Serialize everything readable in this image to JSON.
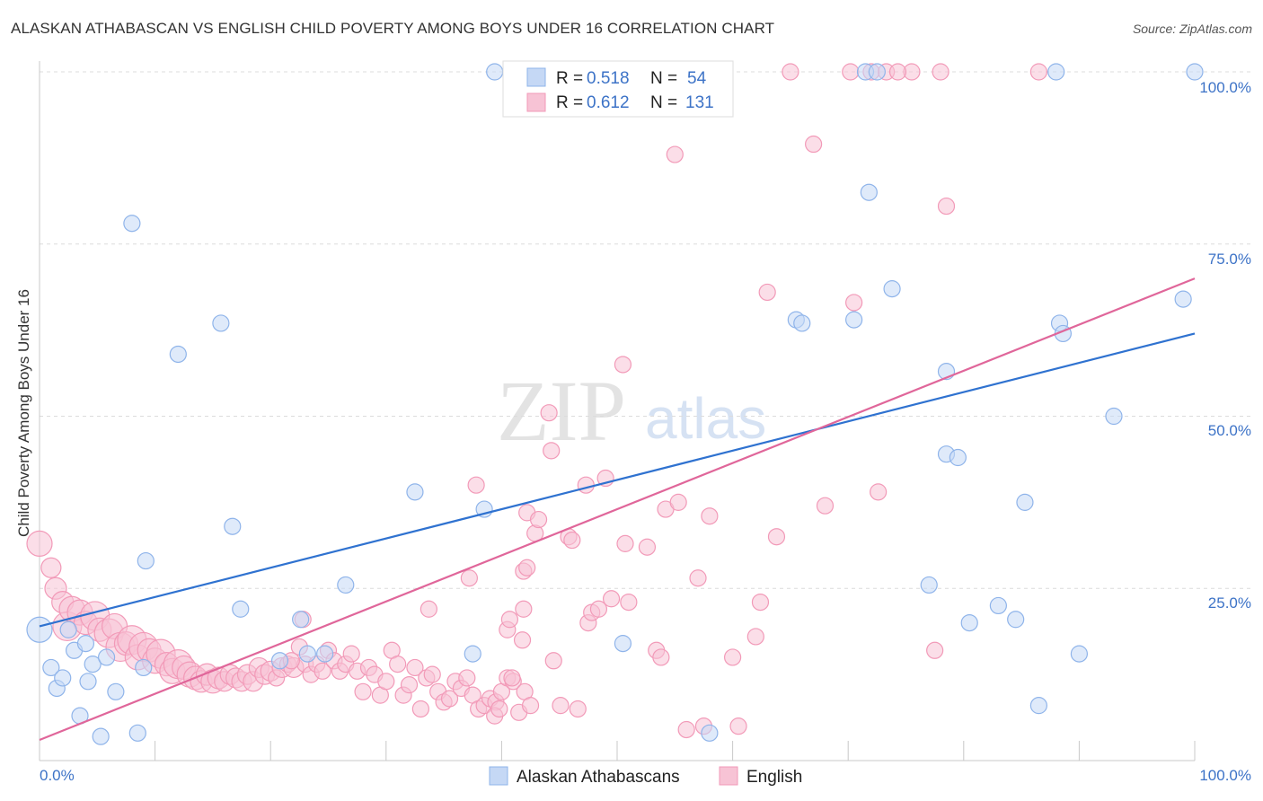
{
  "title": "ALASKAN ATHABASCAN VS ENGLISH CHILD POVERTY AMONG BOYS UNDER 16 CORRELATION CHART",
  "source": "Source: ZipAtlas.com",
  "watermark": {
    "zip": "ZIP",
    "atlas": "atlas"
  },
  "chart_data": {
    "type": "scatter",
    "title": "ALASKAN ATHABASCAN VS ENGLISH CHILD POVERTY AMONG BOYS UNDER 16 CORRELATION CHART",
    "xlabel": "",
    "ylabel": "Child Poverty Among Boys Under 16",
    "xlim": [
      0,
      100
    ],
    "ylim": [
      0,
      100
    ],
    "x_tick_labels": [
      "0.0%",
      "100.0%"
    ],
    "y_ticks": [
      25,
      50,
      75,
      100
    ],
    "y_tick_labels": [
      "25.0%",
      "50.0%",
      "75.0%",
      "100.0%"
    ],
    "grid": "dashed horizontal",
    "legend": {
      "placement": "top-center",
      "entries": [
        {
          "r_label": "R =",
          "r": "0.518",
          "n_label": "N =",
          "n": "54"
        },
        {
          "r_label": "R =",
          "r": "0.612",
          "n_label": "N =",
          "n": "131"
        }
      ]
    },
    "series": [
      {
        "name": "Alaskan Athabascans",
        "color": "#8fb4ea",
        "fill": "#c5d8f5",
        "line_color": "#2f72d0",
        "r": 0.518,
        "n": 54,
        "trend": {
          "x": [
            0,
            100
          ],
          "y": [
            19.5,
            62
          ]
        },
        "points": [
          [
            0,
            19,
            14
          ],
          [
            1,
            13.5,
            9
          ],
          [
            1.5,
            10.5,
            9
          ],
          [
            2,
            12,
            9
          ],
          [
            2.5,
            19,
            9
          ],
          [
            3,
            16,
            9
          ],
          [
            3.5,
            6.5,
            9
          ],
          [
            4,
            17,
            9
          ],
          [
            4.2,
            11.5,
            9
          ],
          [
            4.6,
            14,
            9
          ],
          [
            5.3,
            3.5,
            9
          ],
          [
            5.8,
            15,
            9
          ],
          [
            6.6,
            10,
            9
          ],
          [
            8,
            78,
            9
          ],
          [
            8.5,
            4,
            9
          ],
          [
            9,
            13.5,
            9
          ],
          [
            9.2,
            29,
            9
          ],
          [
            12,
            59,
            9
          ],
          [
            15.7,
            63.5,
            9
          ],
          [
            16.7,
            34,
            9
          ],
          [
            17.4,
            22,
            9
          ],
          [
            20.8,
            14.5,
            9
          ],
          [
            22.6,
            20.5,
            9
          ],
          [
            23.2,
            15.5,
            9
          ],
          [
            24.7,
            15.5,
            9
          ],
          [
            26.5,
            25.5,
            9
          ],
          [
            32.5,
            39,
            9
          ],
          [
            37.5,
            15.5,
            9
          ],
          [
            38.5,
            36.5,
            9
          ],
          [
            39.4,
            100,
            9
          ],
          [
            50.5,
            17,
            9
          ],
          [
            58,
            4,
            9
          ],
          [
            65.5,
            64,
            9
          ],
          [
            66,
            63.5,
            9
          ],
          [
            70.5,
            64,
            9
          ],
          [
            71.5,
            100,
            9
          ],
          [
            71.8,
            82.5,
            9
          ],
          [
            72.5,
            100,
            9
          ],
          [
            73.8,
            68.5,
            9
          ],
          [
            77,
            25.5,
            9
          ],
          [
            78.5,
            56.5,
            9
          ],
          [
            78.5,
            44.5,
            9
          ],
          [
            79.5,
            44,
            9
          ],
          [
            80.5,
            20,
            9
          ],
          [
            83,
            22.5,
            9
          ],
          [
            84.5,
            20.5,
            9
          ],
          [
            85.3,
            37.5,
            9
          ],
          [
            86.5,
            8,
            9
          ],
          [
            88,
            100,
            9
          ],
          [
            88.3,
            63.5,
            9
          ],
          [
            88.6,
            62,
            9
          ],
          [
            90,
            15.5,
            9
          ],
          [
            93,
            50,
            9
          ],
          [
            99,
            67,
            9
          ],
          [
            100,
            100,
            9
          ]
        ]
      },
      {
        "name": "English",
        "color": "#f29ab8",
        "fill": "#f7c3d5",
        "line_color": "#e0669a",
        "r": 0.612,
        "n": 131,
        "trend": {
          "x": [
            0,
            100
          ],
          "y": [
            3,
            70
          ]
        },
        "points": [
          [
            0,
            31.5,
            14
          ],
          [
            1,
            28,
            11
          ],
          [
            1.4,
            25,
            12
          ],
          [
            2,
            23,
            12
          ],
          [
            2.4,
            19.5,
            16
          ],
          [
            2.8,
            22,
            14
          ],
          [
            3.5,
            21.5,
            14
          ],
          [
            4,
            20,
            13
          ],
          [
            4.8,
            21,
            16
          ],
          [
            5.2,
            19,
            13
          ],
          [
            6,
            18.5,
            16
          ],
          [
            6.5,
            19.5,
            14
          ],
          [
            7,
            16.5,
            16
          ],
          [
            7.5,
            17,
            13
          ],
          [
            8,
            17.5,
            16
          ],
          [
            8.5,
            15,
            14
          ],
          [
            9,
            16.5,
            16
          ],
          [
            9.5,
            16,
            13
          ],
          [
            10,
            14.5,
            14
          ],
          [
            10.5,
            15.5,
            16
          ],
          [
            11,
            14,
            13
          ],
          [
            11.5,
            13,
            14
          ],
          [
            12,
            14,
            16
          ],
          [
            12.5,
            13.5,
            13
          ],
          [
            13,
            12.5,
            14
          ],
          [
            13.5,
            12,
            13
          ],
          [
            14,
            11.5,
            12
          ],
          [
            14.5,
            12.5,
            12
          ],
          [
            15,
            11.5,
            13
          ],
          [
            15.5,
            12,
            12
          ],
          [
            16,
            11.5,
            11
          ],
          [
            16.5,
            12.5,
            11
          ],
          [
            17,
            12,
            11
          ],
          [
            17.5,
            11.5,
            11
          ],
          [
            18,
            12.5,
            11
          ],
          [
            18.5,
            11.5,
            11
          ],
          [
            19,
            13.5,
            11
          ],
          [
            19.5,
            12.5,
            11
          ],
          [
            20,
            13,
            11
          ],
          [
            20.5,
            12,
            9
          ],
          [
            21,
            13.5,
            11
          ],
          [
            21.5,
            14,
            9
          ],
          [
            22,
            13.5,
            11
          ],
          [
            22.5,
            16.5,
            9
          ],
          [
            23,
            14,
            9
          ],
          [
            23.5,
            12.5,
            9
          ],
          [
            24,
            14,
            9
          ],
          [
            24.5,
            13,
            9
          ],
          [
            25,
            16,
            9
          ],
          [
            25.5,
            14.5,
            9
          ],
          [
            26,
            13,
            9
          ],
          [
            26.5,
            14,
            9
          ],
          [
            27,
            15.5,
            9
          ],
          [
            27.5,
            13,
            9
          ],
          [
            28,
            10,
            9
          ],
          [
            28.5,
            13.5,
            9
          ],
          [
            29,
            12.5,
            9
          ],
          [
            29.5,
            9.5,
            9
          ],
          [
            30,
            11.5,
            9
          ],
          [
            30.5,
            16,
            9
          ],
          [
            31,
            14,
            9
          ],
          [
            31.5,
            9.5,
            9
          ],
          [
            32,
            11,
            9
          ],
          [
            32.5,
            13.5,
            9
          ],
          [
            33,
            7.5,
            9
          ],
          [
            33.5,
            12,
            9
          ],
          [
            34,
            12.5,
            9
          ],
          [
            34.5,
            10,
            9
          ],
          [
            35,
            8.5,
            9
          ],
          [
            35.5,
            9,
            9
          ],
          [
            36,
            11.5,
            9
          ],
          [
            36.5,
            10.5,
            9
          ],
          [
            37,
            12,
            9
          ],
          [
            37.5,
            9.5,
            9
          ],
          [
            38,
            7.5,
            9
          ],
          [
            38.5,
            8,
            9
          ],
          [
            39,
            9,
            9
          ],
          [
            39.5,
            8.5,
            9
          ],
          [
            40,
            10,
            9
          ],
          [
            40.5,
            12,
            9
          ],
          [
            41,
            11.5,
            9
          ],
          [
            41.5,
            7,
            9
          ],
          [
            42,
            10,
            9
          ],
          [
            42.5,
            8,
            9
          ],
          [
            21.8,
            14.5,
            9
          ],
          [
            22.8,
            20.5,
            9
          ],
          [
            33.7,
            22,
            9
          ],
          [
            37.2,
            26.5,
            9
          ],
          [
            37.8,
            40,
            9
          ],
          [
            39.4,
            6.5,
            9
          ],
          [
            39.8,
            7.5,
            9
          ],
          [
            40.5,
            19,
            9
          ],
          [
            40.7,
            20.5,
            9
          ],
          [
            40.9,
            12,
            9
          ],
          [
            41.8,
            17.5,
            9
          ],
          [
            41.9,
            22,
            9
          ],
          [
            41.9,
            27.5,
            9
          ],
          [
            42.2,
            28,
            9
          ],
          [
            42.2,
            36,
            9
          ],
          [
            42.9,
            33,
            9
          ],
          [
            43.2,
            35,
            9
          ],
          [
            44.1,
            50.5,
            9
          ],
          [
            44.3,
            45,
            9
          ],
          [
            44.5,
            14.5,
            9
          ],
          [
            45.1,
            8,
            9
          ],
          [
            45.8,
            32.5,
            9
          ],
          [
            46.1,
            32,
            9
          ],
          [
            46.6,
            7.5,
            9
          ],
          [
            47.3,
            40,
            9
          ],
          [
            47.5,
            20,
            9
          ],
          [
            47.8,
            21.5,
            9
          ],
          [
            48.4,
            22,
            9
          ],
          [
            49.0,
            41,
            9
          ],
          [
            49.5,
            23.5,
            9
          ],
          [
            50.5,
            57.5,
            9
          ],
          [
            50.7,
            31.5,
            9
          ],
          [
            51.0,
            23,
            9
          ],
          [
            52.6,
            31,
            9
          ],
          [
            53.4,
            16,
            9
          ],
          [
            53.8,
            15,
            9
          ],
          [
            54.2,
            36.5,
            9
          ],
          [
            55.0,
            88,
            9
          ],
          [
            55.3,
            37.5,
            9
          ],
          [
            56.0,
            4.5,
            9
          ],
          [
            57.0,
            26.5,
            9
          ],
          [
            57.5,
            5,
            9
          ],
          [
            58.0,
            35.5,
            9
          ],
          [
            60.0,
            15,
            9
          ],
          [
            60.5,
            5,
            9
          ],
          [
            62.0,
            18,
            9
          ],
          [
            62.4,
            23,
            9
          ],
          [
            63.0,
            68,
            9
          ],
          [
            63.8,
            32.5,
            9
          ],
          [
            65.0,
            100,
            9
          ],
          [
            67.0,
            89.5,
            9
          ],
          [
            68.0,
            37,
            9
          ],
          [
            70.5,
            66.5,
            9
          ],
          [
            72.0,
            100,
            9
          ],
          [
            72.6,
            39,
            9
          ],
          [
            73.3,
            100,
            9
          ],
          [
            75.5,
            100,
            9
          ],
          [
            77.5,
            16,
            9
          ],
          [
            78,
            100,
            9
          ],
          [
            78.5,
            80.5,
            9
          ],
          [
            86.5,
            100,
            9
          ],
          [
            70.2,
            100,
            9
          ],
          [
            74.3,
            100,
            9
          ]
        ]
      }
    ]
  },
  "bottom_legend": [
    {
      "label": "Alaskan Athabascans"
    },
    {
      "label": "English"
    }
  ]
}
